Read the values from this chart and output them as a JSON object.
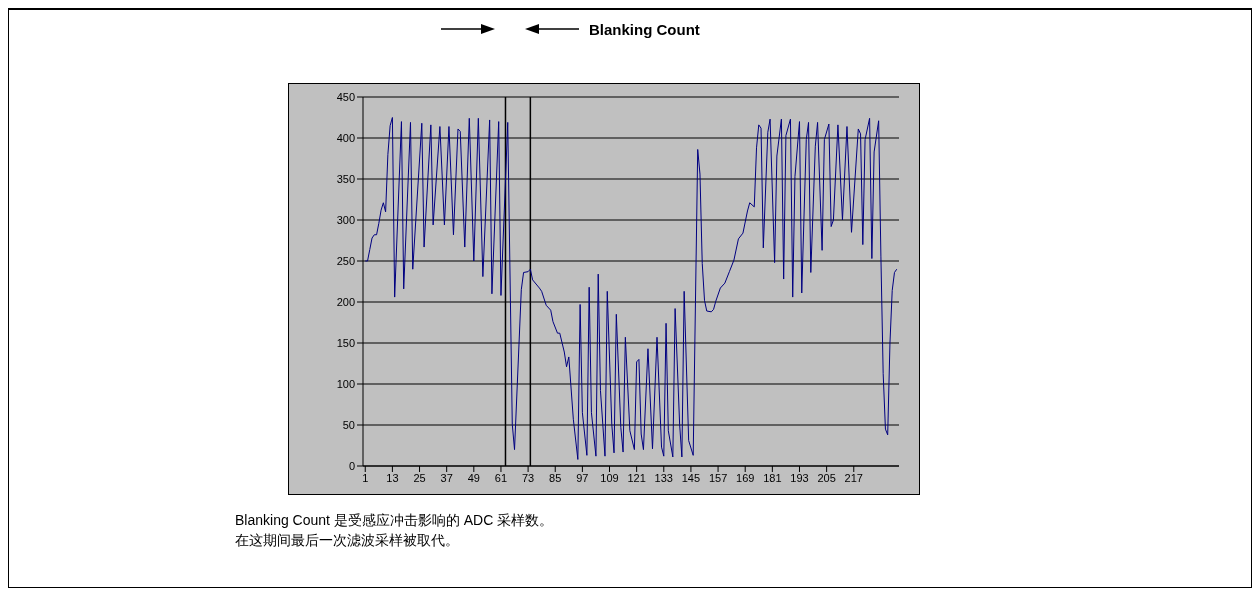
{
  "chart_data": {
    "type": "line",
    "x": [
      1,
      2,
      3,
      4,
      5,
      6,
      7,
      8,
      9,
      10,
      11,
      12,
      13,
      14,
      17,
      18,
      21,
      22,
      26,
      27,
      30,
      31,
      34,
      36,
      38,
      40,
      42,
      43,
      45,
      47,
      49,
      51,
      53,
      56,
      57,
      60,
      61,
      64,
      66,
      67,
      70,
      71,
      73,
      74,
      75,
      78,
      79,
      81,
      83,
      84,
      86,
      87,
      89,
      90,
      91,
      93,
      95,
      96,
      97,
      99,
      100,
      101,
      103,
      104,
      105,
      107,
      108,
      110,
      111,
      112,
      114,
      115,
      116,
      118,
      120,
      121,
      122,
      123,
      124,
      126,
      128,
      130,
      132,
      133,
      134,
      135,
      137,
      138,
      140,
      141,
      142,
      144,
      146,
      148,
      149,
      150,
      151,
      152,
      154,
      155,
      156,
      158,
      160,
      162,
      164,
      166,
      168,
      170,
      171,
      173,
      174,
      175,
      176,
      177,
      179,
      180,
      182,
      183,
      185,
      186,
      187,
      189,
      190,
      191,
      193,
      194,
      196,
      197,
      198,
      200,
      201,
      203,
      204,
      206,
      207,
      208,
      210,
      212,
      214,
      216,
      219,
      220,
      221,
      222,
      224,
      225,
      226,
      228,
      229,
      230,
      231,
      232,
      233,
      234,
      235,
      236
    ],
    "values": [
      250,
      250,
      264,
      278,
      282,
      282,
      296,
      312,
      321,
      310,
      380,
      415,
      425,
      206,
      420,
      216,
      419,
      240,
      418,
      267,
      416,
      294,
      414,
      294,
      414,
      282,
      411,
      408,
      267,
      424,
      250,
      424,
      231,
      422,
      210,
      420,
      208,
      419,
      51,
      20,
      215,
      236,
      237,
      240,
      227,
      217,
      213,
      196,
      190,
      176,
      162,
      162,
      139,
      121,
      133,
      57,
      8,
      197,
      65,
      13,
      218,
      65,
      12,
      234,
      92,
      12,
      213,
      51,
      16,
      185,
      47,
      17,
      157,
      43,
      20,
      127,
      130,
      39,
      20,
      143,
      21,
      157,
      23,
      12,
      174,
      43,
      11,
      192,
      51,
      11,
      213,
      31,
      13,
      386,
      356,
      247,
      202,
      189,
      188,
      191,
      201,
      217,
      223,
      237,
      251,
      277,
      284,
      311,
      321,
      316,
      388,
      416,
      412,
      266,
      407,
      423,
      248,
      378,
      423,
      228,
      403,
      423,
      206,
      353,
      420,
      211,
      398,
      419,
      236,
      390,
      419,
      263,
      398,
      417,
      292,
      300,
      416,
      300,
      414,
      285,
      411,
      405,
      270,
      398,
      424,
      253,
      383,
      421,
      255,
      113,
      45,
      38,
      150,
      214,
      236,
      240
    ],
    "color": "#000080",
    "marker": "none",
    "line_style": "solid",
    "xlim": [
      0,
      237
    ],
    "xticks": [
      1,
      13,
      25,
      37,
      49,
      61,
      73,
      85,
      97,
      109,
      121,
      133,
      145,
      157,
      169,
      181,
      193,
      205,
      217
    ],
    "ylim": [
      0,
      450
    ],
    "yticks": [
      0,
      50,
      100,
      150,
      200,
      250,
      300,
      350,
      400,
      450
    ],
    "grid": "y",
    "ref_lines": [
      {
        "axis": "x",
        "value": 63,
        "color": "#000000"
      },
      {
        "axis": "x",
        "value": 74,
        "color": "#000000"
      }
    ],
    "annotations": [
      "Blanking Count",
      "Blanking Count 是受感应冲击影响的 ADC 采样数。",
      "在这期间最后一次滤波采样被取代。"
    ]
  }
}
